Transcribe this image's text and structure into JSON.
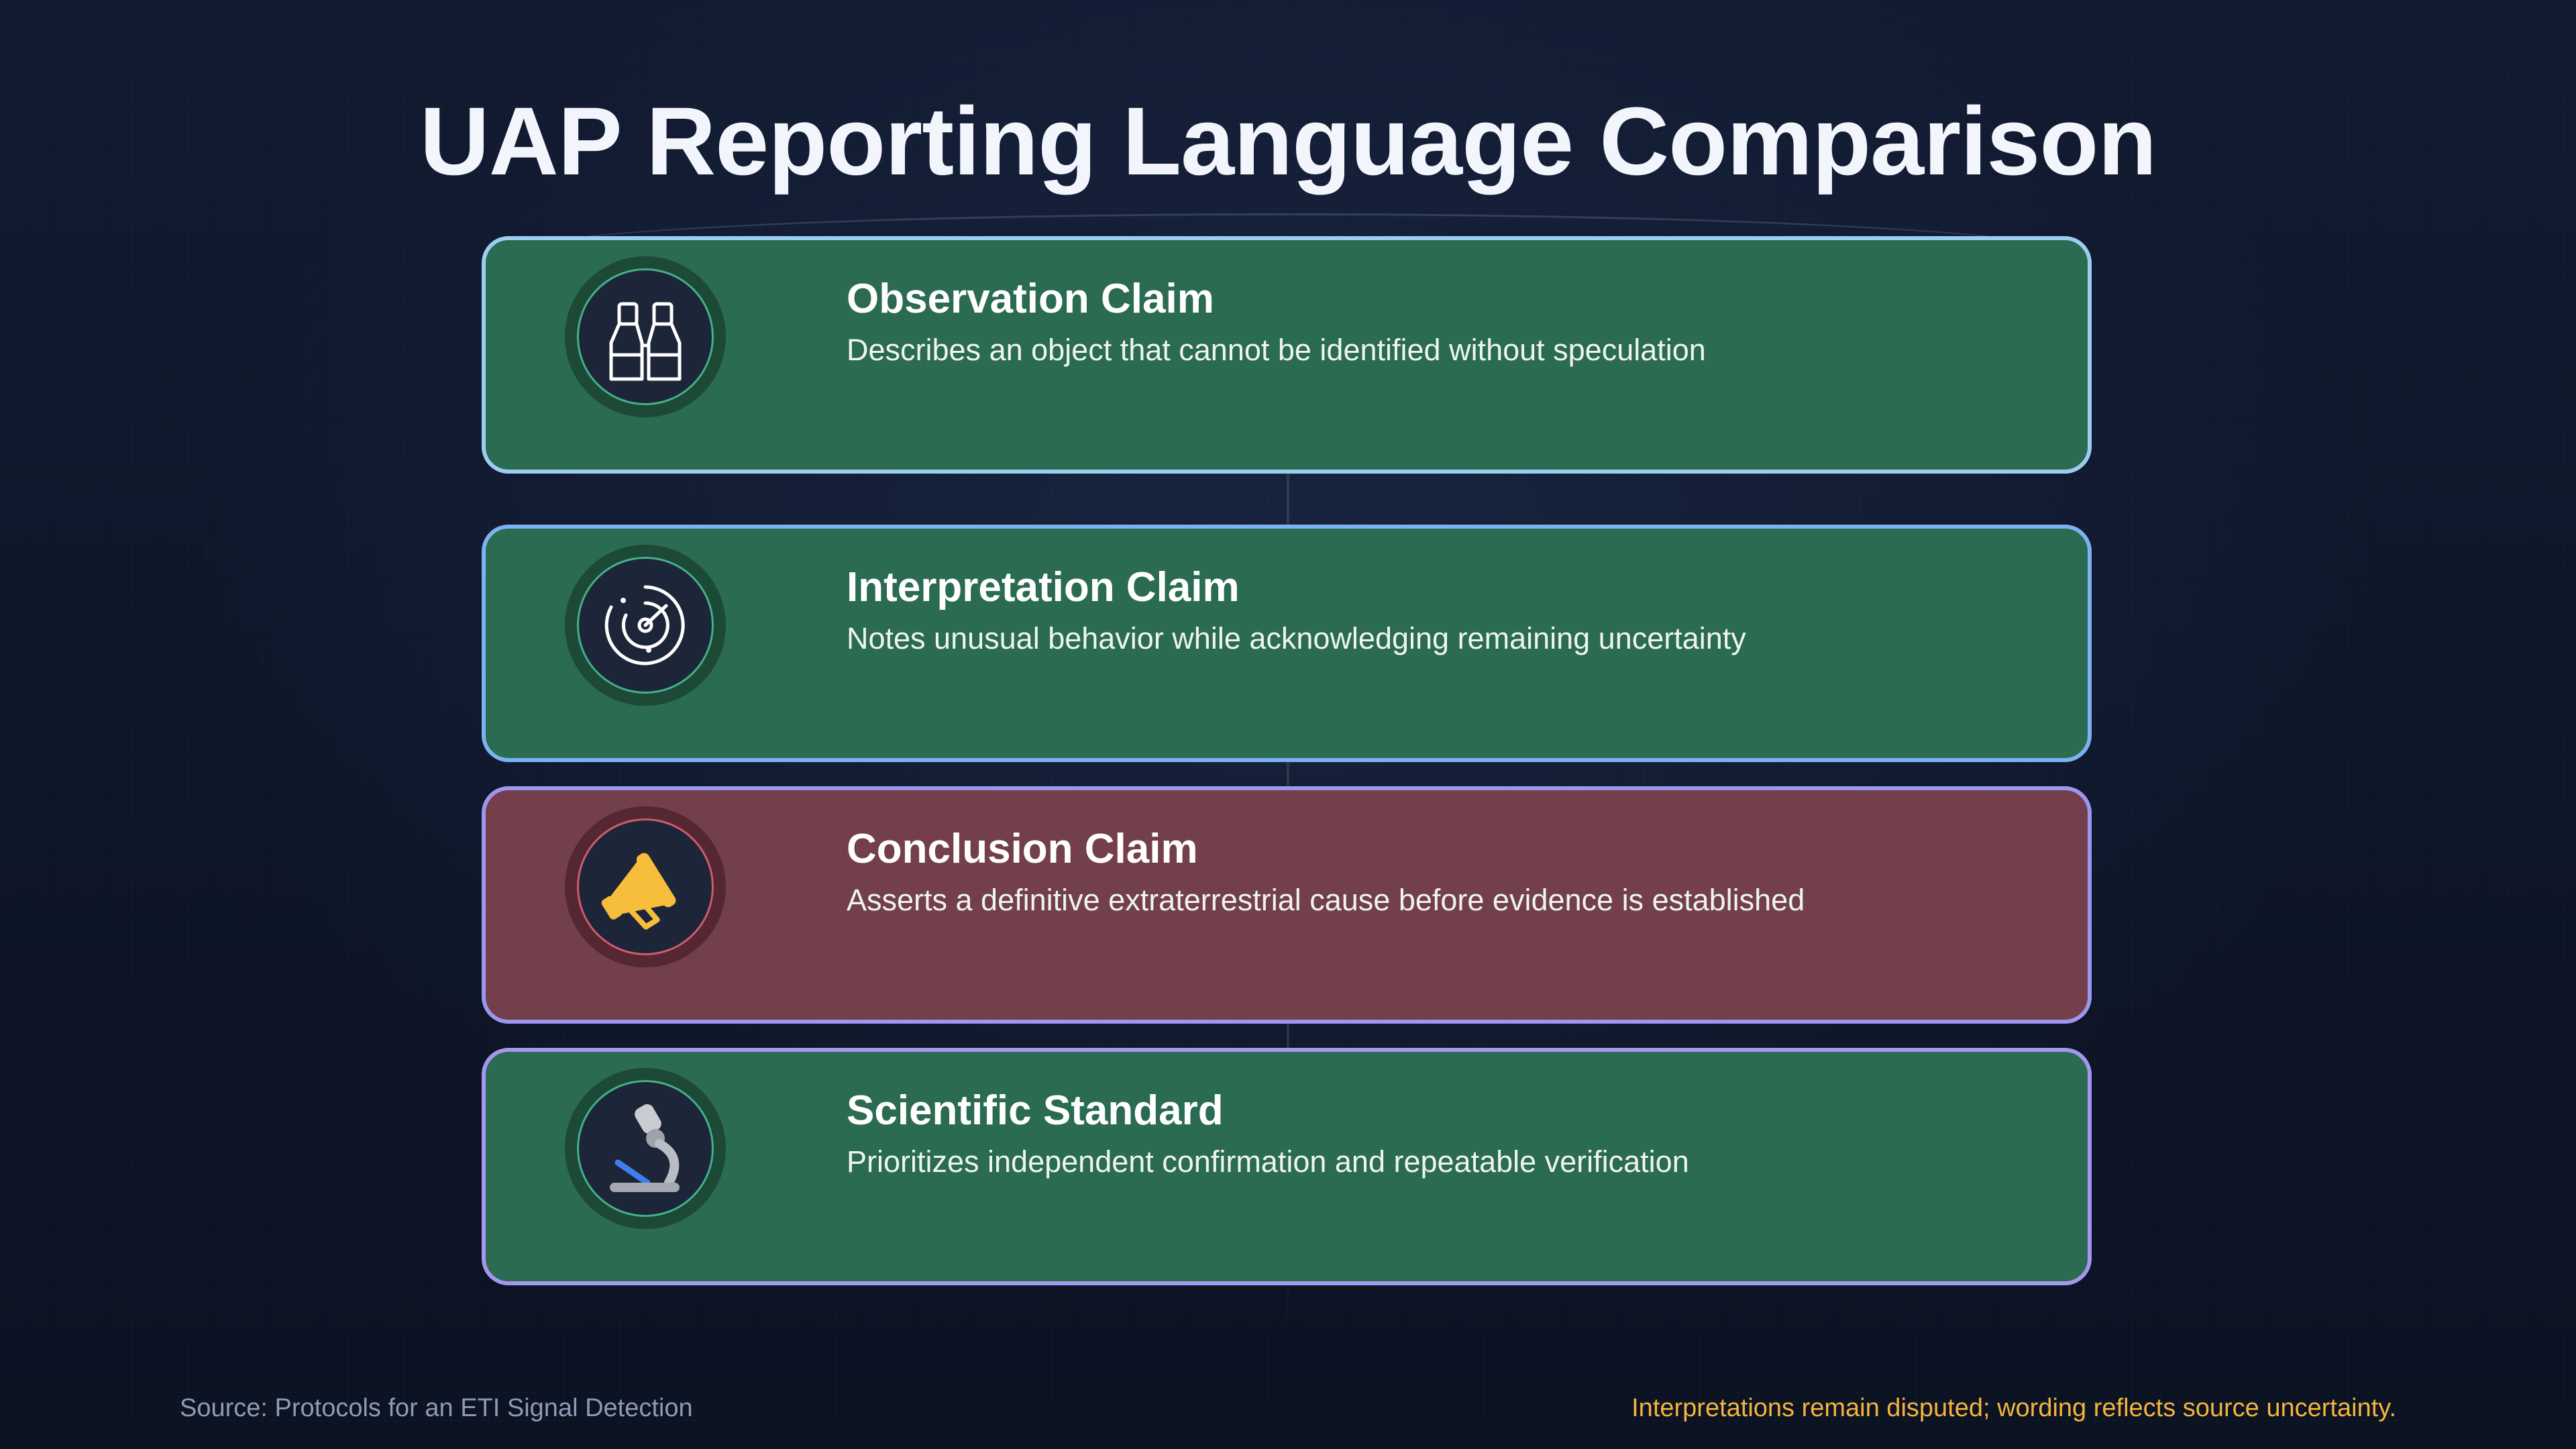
{
  "title": "UAP Reporting Language Comparison",
  "cards": [
    {
      "title": "Observation Claim",
      "description": "Describes an object that cannot be identified without speculation",
      "icon": "binoculars-icon"
    },
    {
      "title": "Interpretation Claim",
      "description": "Notes unusual behavior while acknowledging remaining uncertainty",
      "icon": "radar-icon"
    },
    {
      "title": "Conclusion Claim",
      "description": "Asserts a definitive extraterrestrial cause before evidence is established",
      "icon": "megaphone-icon"
    },
    {
      "title": "Scientific Standard",
      "description": "Prioritizes independent confirmation and repeatable verification",
      "icon": "microscope-icon"
    }
  ],
  "colors": {
    "card_green": "#2b6b52",
    "card_red": "#733f4b",
    "footer_note": "#f4b43c"
  },
  "footer": {
    "source": "Source: Protocols for an ETI Signal Detection",
    "note": "Interpretations remain disputed; wording reflects source uncertainty."
  }
}
